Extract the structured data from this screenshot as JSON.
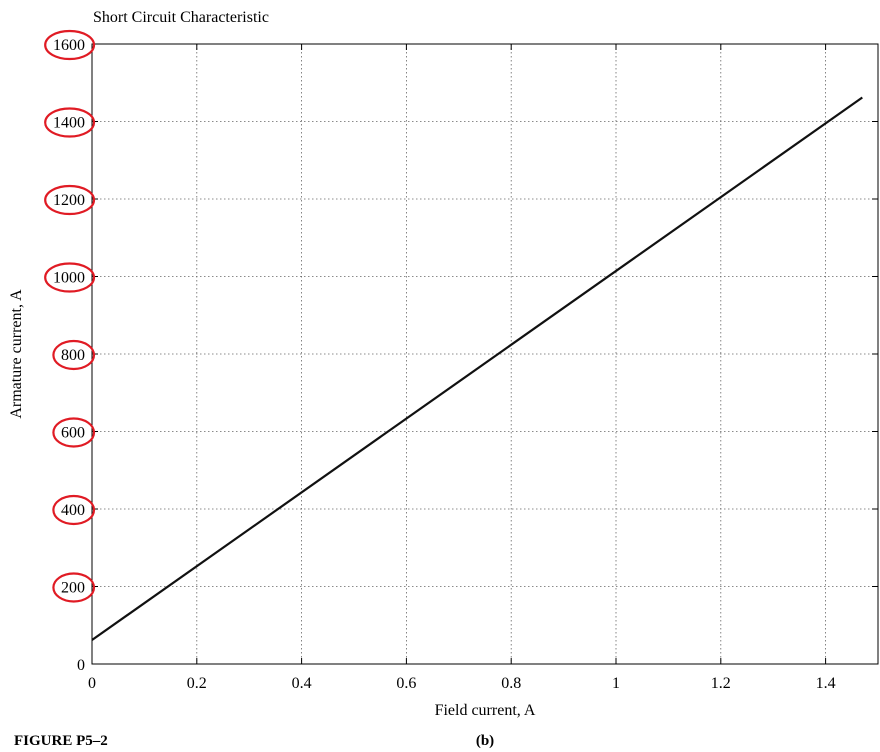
{
  "chart_data": {
    "type": "line",
    "title": "Short Circuit Characteristic",
    "xlabel": "Field current, A",
    "ylabel": "Armature current, A",
    "xlim": [
      0,
      1.5
    ],
    "ylim": [
      0,
      1600
    ],
    "x_ticks": [
      "0",
      "0.2",
      "0.4",
      "0.6",
      "0.8",
      "1",
      "1.2",
      "1.4"
    ],
    "y_ticks": [
      "0",
      "200",
      "400",
      "600",
      "800",
      "1000",
      "1200",
      "1400",
      "1600"
    ],
    "circled_y_ticks": [
      "200",
      "400",
      "600",
      "800",
      "1000",
      "1200",
      "1400",
      "1600"
    ],
    "grid": true,
    "series": [
      {
        "x": [
          0,
          1.47
        ],
        "y": [
          62,
          1462
        ]
      }
    ]
  },
  "figure_label": "FIGURE P5–2",
  "panel_label": "(b)",
  "colors": {
    "line": "#111111",
    "annotation": "#e01b24",
    "grid": "#666666"
  }
}
